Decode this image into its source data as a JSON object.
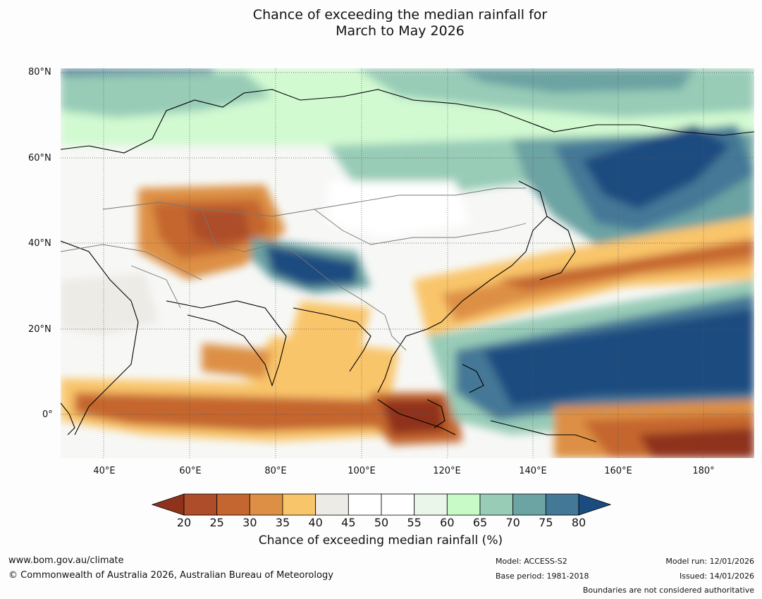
{
  "title_line1": "Chance of exceeding the median rainfall for",
  "title_line2": "March to May 2026",
  "axes": {
    "lat_labels": [
      "80°N",
      "60°N",
      "40°N",
      "20°N",
      "0°"
    ],
    "lon_labels": [
      "40°E",
      "60°E",
      "80°E",
      "100°E",
      "120°E",
      "140°E",
      "160°E",
      "180°"
    ]
  },
  "colorbar": {
    "ticks": [
      "20",
      "25",
      "30",
      "35",
      "40",
      "45",
      "50",
      "55",
      "60",
      "65",
      "70",
      "75",
      "80"
    ],
    "colors": [
      "#8f321b",
      "#ad4d2a",
      "#c4662f",
      "#dd9045",
      "#f9c56a",
      "#edebe6",
      "#ffffff",
      "#ffffff",
      "#eaf6ea",
      "#c8fac8",
      "#98ccb7",
      "#6ca3a3",
      "#447897",
      "#1a4c80"
    ],
    "label": "Chance of exceeding median rainfall (%)"
  },
  "footer": {
    "website": "www.bom.gov.au/climate",
    "copyright": "© Commonwealth of Australia 2026, Australian Bureau of Meteorology",
    "model": "Model: ACCESS-S2",
    "base_period": "Base period: 1981-2018",
    "model_run": "Model run: 12/01/2026",
    "issued": "Issued: 14/01/2026",
    "boundaries_note": "Boundaries are not considered authoritative"
  }
}
